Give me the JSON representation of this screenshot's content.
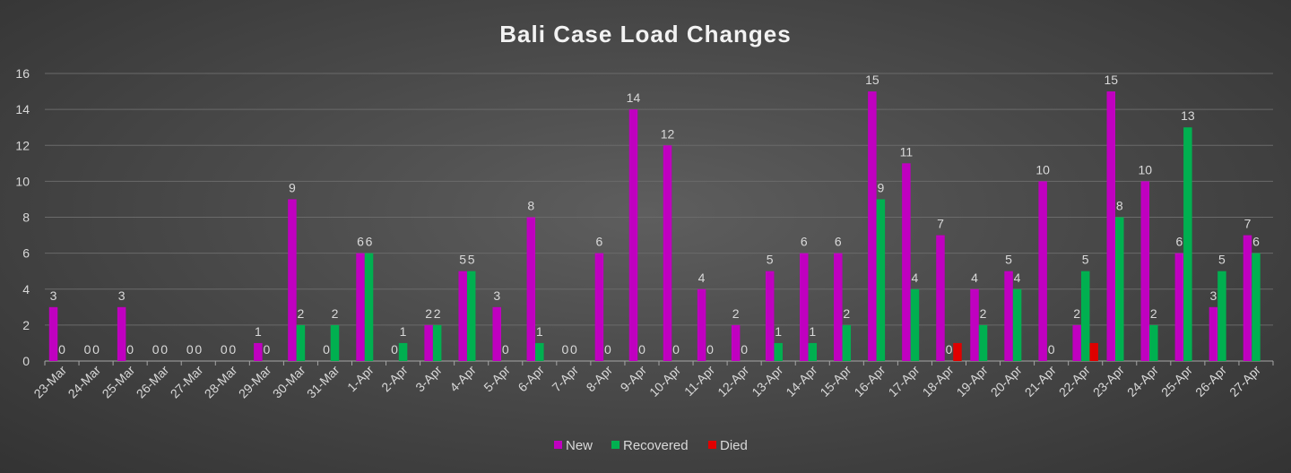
{
  "chart_data": {
    "type": "bar",
    "title": "Bali Case Load Changes",
    "xlabel": "",
    "ylabel": "",
    "ylim": [
      0,
      16
    ],
    "yticks": [
      0,
      2,
      4,
      6,
      8,
      10,
      12,
      14,
      16
    ],
    "grid": true,
    "legend": "bottom",
    "categories": [
      "23-Mar",
      "24-Mar",
      "25-Mar",
      "26-Mar",
      "27-Mar",
      "28-Mar",
      "29-Mar",
      "30-Mar",
      "31-Mar",
      "1-Apr",
      "2-Apr",
      "3-Apr",
      "4-Apr",
      "5-Apr",
      "6-Apr",
      "7-Apr",
      "8-Apr",
      "9-Apr",
      "10-Apr",
      "11-Apr",
      "12-Apr",
      "13-Apr",
      "14-Apr",
      "15-Apr",
      "16-Apr",
      "17-Apr",
      "18-Apr",
      "19-Apr",
      "20-Apr",
      "21-Apr",
      "22-Apr",
      "23-Apr",
      "24-Apr",
      "25-Apr",
      "26-Apr",
      "27-Apr"
    ],
    "series": [
      {
        "name": "New",
        "color": "#c000c0",
        "values": [
          3,
          0,
          3,
          0,
          0,
          0,
          1,
          9,
          0,
          6,
          0,
          2,
          5,
          3,
          8,
          0,
          6,
          14,
          12,
          4,
          2,
          5,
          6,
          6,
          15,
          11,
          7,
          4,
          5,
          10,
          2,
          15,
          10,
          6,
          3,
          7
        ]
      },
      {
        "name": "Recovered",
        "color": "#00b050",
        "values": [
          0,
          0,
          0,
          0,
          0,
          0,
          0,
          2,
          2,
          6,
          1,
          2,
          5,
          0,
          1,
          0,
          0,
          0,
          0,
          0,
          0,
          1,
          1,
          2,
          9,
          4,
          0,
          2,
          4,
          0,
          5,
          8,
          2,
          13,
          5,
          6
        ]
      },
      {
        "name": "Died",
        "color": "#e00000",
        "values": [
          null,
          null,
          null,
          null,
          null,
          null,
          null,
          null,
          null,
          null,
          null,
          null,
          null,
          null,
          null,
          null,
          null,
          null,
          null,
          null,
          null,
          null,
          null,
          null,
          null,
          null,
          1,
          null,
          null,
          null,
          1,
          null,
          null,
          null,
          null,
          null
        ]
      }
    ]
  }
}
